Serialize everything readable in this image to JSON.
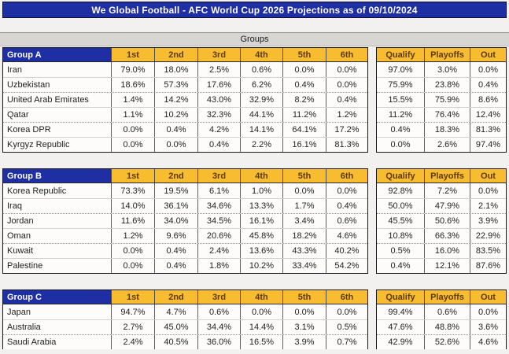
{
  "title": "We Global Football - AFC World Cup 2026 Projections as of 09/10/2024",
  "groups_band_label": "Groups",
  "position_headers": [
    "1st",
    "2nd",
    "3rd",
    "4th",
    "5th",
    "6th"
  ],
  "outcome_headers": [
    "Qualify",
    "Playoffs",
    "Out"
  ],
  "colors": {
    "title_blue": "#1e2fa4",
    "gold": "#f7bc30",
    "gold_text": "#5e3a06",
    "band_gray": "#d8d6d3"
  },
  "groups": [
    {
      "label": "Group A",
      "teams": [
        {
          "name": "Iran",
          "positions": [
            "79.0%",
            "18.0%",
            "2.5%",
            "0.6%",
            "0.0%",
            "0.0%"
          ],
          "outcomes": [
            "97.0%",
            "3.0%",
            "0.0%"
          ]
        },
        {
          "name": "Uzbekistan",
          "positions": [
            "18.6%",
            "57.3%",
            "17.6%",
            "6.2%",
            "0.4%",
            "0.0%"
          ],
          "outcomes": [
            "75.9%",
            "23.8%",
            "0.4%"
          ]
        },
        {
          "name": "United Arab Emirates",
          "positions": [
            "1.4%",
            "14.2%",
            "43.0%",
            "32.9%",
            "8.2%",
            "0.4%"
          ],
          "outcomes": [
            "15.5%",
            "75.9%",
            "8.6%"
          ]
        },
        {
          "name": "Qatar",
          "positions": [
            "1.1%",
            "10.2%",
            "32.3%",
            "44.1%",
            "11.2%",
            "1.2%"
          ],
          "outcomes": [
            "11.2%",
            "76.4%",
            "12.4%"
          ]
        },
        {
          "name": "Korea DPR",
          "positions": [
            "0.0%",
            "0.4%",
            "4.2%",
            "14.1%",
            "64.1%",
            "17.2%"
          ],
          "outcomes": [
            "0.4%",
            "18.3%",
            "81.3%"
          ]
        },
        {
          "name": "Kyrgyz Republic",
          "positions": [
            "0.0%",
            "0.0%",
            "0.4%",
            "2.2%",
            "16.1%",
            "81.3%"
          ],
          "outcomes": [
            "0.0%",
            "2.6%",
            "97.4%"
          ]
        }
      ]
    },
    {
      "label": "Group B",
      "teams": [
        {
          "name": "Korea Republic",
          "positions": [
            "73.3%",
            "19.5%",
            "6.1%",
            "1.0%",
            "0.0%",
            "0.0%"
          ],
          "outcomes": [
            "92.8%",
            "7.2%",
            "0.0%"
          ]
        },
        {
          "name": "Iraq",
          "positions": [
            "14.0%",
            "36.1%",
            "34.6%",
            "13.3%",
            "1.7%",
            "0.4%"
          ],
          "outcomes": [
            "50.0%",
            "47.9%",
            "2.1%"
          ]
        },
        {
          "name": "Jordan",
          "positions": [
            "11.6%",
            "34.0%",
            "34.5%",
            "16.1%",
            "3.4%",
            "0.6%"
          ],
          "outcomes": [
            "45.5%",
            "50.6%",
            "3.9%"
          ]
        },
        {
          "name": "Oman",
          "positions": [
            "1.2%",
            "9.6%",
            "20.6%",
            "45.8%",
            "18.2%",
            "4.6%"
          ],
          "outcomes": [
            "10.8%",
            "66.3%",
            "22.9%"
          ]
        },
        {
          "name": "Kuwait",
          "positions": [
            "0.0%",
            "0.4%",
            "2.4%",
            "13.6%",
            "43.3%",
            "40.2%"
          ],
          "outcomes": [
            "0.5%",
            "16.0%",
            "83.5%"
          ]
        },
        {
          "name": "Palestine",
          "positions": [
            "0.0%",
            "0.4%",
            "1.8%",
            "10.2%",
            "33.4%",
            "54.2%"
          ],
          "outcomes": [
            "0.4%",
            "12.1%",
            "87.6%"
          ]
        }
      ]
    },
    {
      "label": "Group C",
      "teams": [
        {
          "name": "Japan",
          "positions": [
            "94.7%",
            "4.7%",
            "0.6%",
            "0.0%",
            "0.0%",
            "0.0%"
          ],
          "outcomes": [
            "99.4%",
            "0.6%",
            "0.0%"
          ]
        },
        {
          "name": "Australia",
          "positions": [
            "2.7%",
            "45.0%",
            "34.4%",
            "14.4%",
            "3.1%",
            "0.5%"
          ],
          "outcomes": [
            "47.6%",
            "48.8%",
            "3.6%"
          ]
        },
        {
          "name": "Saudi Arabia",
          "positions": [
            "2.4%",
            "40.5%",
            "36.0%",
            "16.5%",
            "3.9%",
            "0.7%"
          ],
          "outcomes": [
            "42.9%",
            "52.6%",
            "4.6%"
          ]
        }
      ]
    }
  ]
}
